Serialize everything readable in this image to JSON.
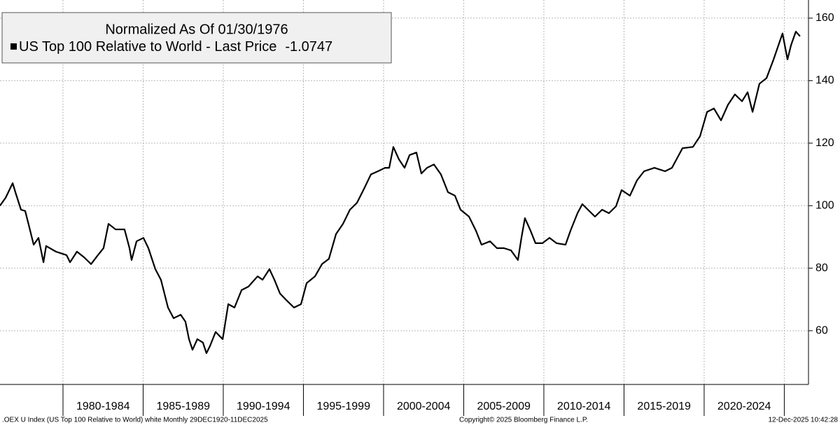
{
  "chart_data": {
    "type": "line",
    "legend_title": "Normalized As Of 01/30/1976",
    "series": [
      {
        "name": "US Top 100 Relative to World - Last Price",
        "last_value": -1.0747,
        "color": "#000000",
        "x": [
          1976.07,
          1976.42,
          1976.86,
          1977.03,
          1977.38,
          1977.64,
          1977.9,
          1978.17,
          1978.47,
          1978.78,
          1978.95,
          1979.56,
          1980.22,
          1980.44,
          1980.87,
          1981.31,
          1981.75,
          1982.18,
          1982.53,
          1982.84,
          1983.28,
          1983.84,
          1984.15,
          1984.28,
          1984.59,
          1985.02,
          1985.33,
          1985.76,
          1986.11,
          1986.55,
          1986.9,
          1987.34,
          1987.64,
          1987.86,
          1988.08,
          1988.38,
          1988.73,
          1988.95,
          1989.17,
          1989.52,
          1989.96,
          1990.31,
          1990.7,
          1991.14,
          1991.57,
          1992.14,
          1992.45,
          1992.88,
          1993.19,
          1993.54,
          1993.97,
          1994.41,
          1994.85,
          1995.2,
          1995.72,
          1996.16,
          1996.59,
          1997.03,
          1997.47,
          1997.9,
          1998.34,
          1998.78,
          1999.21,
          1999.65,
          2000.09,
          2000.35,
          2000.61,
          2000.96,
          2001.31,
          2001.62,
          2002.05,
          2002.36,
          2002.71,
          2003.14,
          2003.58,
          2004.02,
          2004.45,
          2004.8,
          2005.33,
          2005.76,
          2006.11,
          2006.64,
          2007.07,
          2007.51,
          2007.95,
          2008.38,
          2008.6,
          2008.82,
          2009.17,
          2009.48,
          2009.91,
          2010.35,
          2010.79,
          2011.35,
          2011.66,
          2012.1,
          2012.4,
          2012.75,
          2013.19,
          2013.63,
          2014.06,
          2014.5,
          2014.85,
          2015.37,
          2015.81,
          2016.25,
          2016.9,
          2017.56,
          2017.99,
          2018.65,
          2019.3,
          2019.74,
          2020.18,
          2020.61,
          2021.05,
          2021.49,
          2021.92,
          2022.36,
          2022.71,
          2023.02,
          2023.45,
          2023.89,
          2024.33,
          2024.89,
          2025.2,
          2025.42,
          2025.72,
          2025.98
        ],
        "values": [
          100.0,
          102.5,
          107.2,
          104.3,
          98.7,
          98.3,
          93.1,
          87.5,
          89.7,
          81.9,
          87.1,
          85.3,
          84.2,
          81.9,
          85.3,
          83.5,
          81.3,
          84.2,
          86.4,
          94.2,
          92.4,
          92.4,
          86.4,
          82.6,
          88.6,
          89.7,
          86.4,
          79.7,
          76.3,
          67.4,
          64.0,
          65.1,
          62.9,
          57.3,
          53.9,
          57.3,
          56.2,
          52.8,
          55.1,
          59.6,
          57.3,
          68.5,
          67.4,
          73.0,
          74.1,
          77.4,
          76.3,
          79.7,
          76.3,
          71.9,
          69.6,
          67.4,
          68.5,
          75.2,
          77.4,
          81.3,
          83.0,
          90.9,
          94.2,
          98.7,
          100.9,
          105.4,
          110.0,
          111.0,
          112.1,
          112.1,
          118.8,
          114.8,
          112.1,
          116.2,
          117.0,
          110.3,
          112.1,
          113.2,
          110.0,
          104.3,
          103.2,
          98.7,
          96.5,
          92.0,
          87.5,
          88.6,
          86.4,
          86.4,
          85.7,
          82.6,
          89.7,
          96.0,
          92.0,
          88.0,
          88.0,
          89.7,
          88.0,
          87.5,
          92.0,
          97.6,
          100.5,
          98.7,
          96.5,
          98.7,
          97.6,
          99.8,
          105.0,
          103.2,
          108.1,
          111.0,
          112.1,
          111.0,
          112.1,
          118.4,
          118.8,
          122.2,
          130.0,
          131.1,
          127.3,
          132.3,
          135.6,
          133.4,
          136.3,
          130.0,
          139.0,
          140.8,
          146.8,
          155.1,
          146.8,
          151.3,
          155.7,
          154.2
        ]
      }
    ],
    "xlim": [
      1976.07,
      2026.51
    ],
    "xticks": [
      1980,
      1985,
      1990,
      1995,
      2000,
      2005,
      2010,
      2015,
      2020,
      2025
    ],
    "x_band_labels": [
      "1980-1984",
      "1985-1989",
      "1990-1994",
      "1995-1999",
      "2000-2004",
      "2005-2009",
      "2010-2014",
      "2015-2019",
      "2020-2024"
    ],
    "ylim": [
      42.8,
      165.8
    ],
    "yticks": [
      60,
      80,
      100,
      120,
      140,
      160
    ],
    "grid": true,
    "footer_left": ".OEX U Index (US Top 100 Relative to World) white Monthly 29DEC1920-11DEC2025",
    "footer_center": "Copyright© 2025 Bloomberg Finance L.P.",
    "footer_right": "12-Dec-2025 10:42:28"
  }
}
